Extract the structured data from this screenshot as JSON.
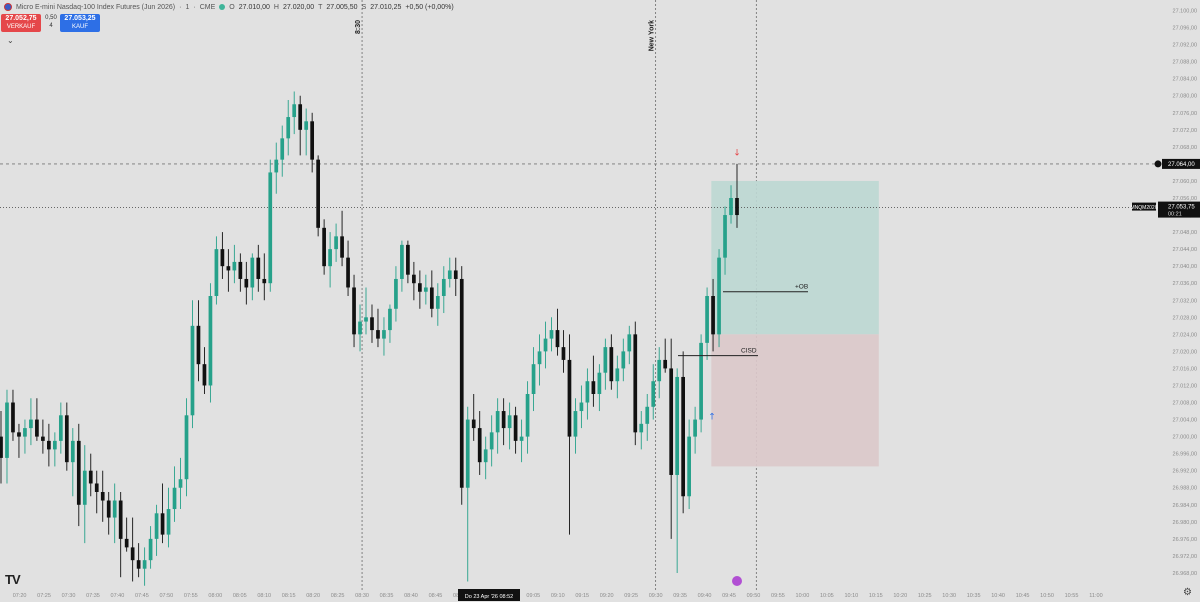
{
  "header": {
    "symbol_title": "Micro E-mini Nasdaq-100 Index Futures (Jun 2026)",
    "interval": "1",
    "exchange": "CME",
    "ohlc": [
      {
        "label": "O",
        "value": "27.010,00"
      },
      {
        "label": "H",
        "value": "27.020,00"
      },
      {
        "label": "T",
        "value": "27.005,50"
      },
      {
        "label": "S",
        "value": "27.010,25"
      }
    ],
    "change": "+0,50 (+0,00%)"
  },
  "trade": {
    "sell_price": "27.052,75",
    "sell_label": "VERKAUF",
    "spread_top": "0,50",
    "spread_bottom": "4",
    "buy_price": "27.053,25",
    "buy_label": "KAUF"
  },
  "colors": {
    "bull": "#26a18a",
    "bear": "#111111",
    "background": "#e1e1e1",
    "target_zone": "#bcd8d3",
    "stop_zone": "#dcc9ca",
    "sell_button": "#e5474a",
    "buy_button": "#2d6fe6"
  },
  "chart_data": {
    "type": "candlestick",
    "symbol": "MNQM2026",
    "ylim": [
      26964,
      27102
    ],
    "y_ticks": [
      "27.100,00",
      "27.096,00",
      "27.092,00",
      "27.088,00",
      "27.084,00",
      "27.080,00",
      "27.076,00",
      "27.072,00",
      "27.068,00",
      "27.064,00",
      "27.060,00",
      "27.056,00",
      "27.052,00",
      "27.048,00",
      "27.044,00",
      "27.040,00",
      "27.036,00",
      "27.032,00",
      "27.028,00",
      "27.024,00",
      "27.020,00",
      "27.016,00",
      "27.012,00",
      "27.008,00",
      "27.004,00",
      "27.000,00",
      "26.996,00",
      "26.992,00",
      "26.988,00",
      "26.984,00",
      "26.980,00",
      "26.976,00",
      "26.972,00",
      "26.968,00"
    ],
    "x_ticks": [
      "07:20",
      "07:25",
      "07:30",
      "07:35",
      "07:40",
      "07:45",
      "07:50",
      "07:55",
      "08:00",
      "08:05",
      "08:10",
      "08:15",
      "08:20",
      "08:25",
      "08:30",
      "08:35",
      "08:40",
      "08:45",
      "08:50",
      "08:55",
      "09:00",
      "09:05",
      "09:10",
      "09:15",
      "09:20",
      "09:25",
      "09:30",
      "09:35",
      "09:40",
      "09:45",
      "09:50",
      "09:55",
      "10:00",
      "10:05",
      "10:10",
      "10:15",
      "10:20",
      "10:25",
      "10:30",
      "10:35",
      "10:40",
      "10:45",
      "10:50",
      "10:55",
      "11:00"
    ],
    "x_start_minutes": 436,
    "x_end_minutes": 669,
    "cursor_label": "Do 23 Apr '26   08:52",
    "session_labels": [
      {
        "text": "8:30",
        "time": "08:30"
      },
      {
        "text": "New York",
        "time": "09:30"
      }
    ],
    "current_price": {
      "value": "27.053,75",
      "countdown": "00:21",
      "symbol": "MNQM2026"
    },
    "alert_level": {
      "value": "27.064,00"
    },
    "annotations": [
      {
        "text": "+OB",
        "price": 27034
      },
      {
        "text": "CISD",
        "price": 27019
      }
    ],
    "position": {
      "entry": 27024,
      "target": 27060,
      "stop": 26993,
      "start": "09:42",
      "end": "10:15"
    },
    "candles": [
      [
        27000,
        27006,
        26989,
        26995
      ],
      [
        26995,
        27011,
        26989,
        27008
      ],
      [
        27008,
        27011,
        26999,
        27001
      ],
      [
        27001,
        27003,
        26995,
        27000
      ],
      [
        27000,
        27004,
        26996,
        27002
      ],
      [
        27002,
        27009,
        26998,
        27004
      ],
      [
        27004,
        27009,
        26999,
        27000
      ],
      [
        27000,
        27004,
        26996,
        26999
      ],
      [
        26999,
        27003,
        26993,
        26997
      ],
      [
        26997,
        27001,
        26993,
        26999
      ],
      [
        26999,
        27008,
        26996,
        27005
      ],
      [
        27005,
        27008,
        26992,
        26994
      ],
      [
        26994,
        27002,
        26986,
        26999
      ],
      [
        26999,
        27003,
        26979,
        26984
      ],
      [
        26984,
        26998,
        26975,
        26992
      ],
      [
        26992,
        26996,
        26986,
        26989
      ],
      [
        26989,
        26992,
        26982,
        26987
      ],
      [
        26987,
        26992,
        26980,
        26985
      ],
      [
        26985,
        26987,
        26977,
        26981
      ],
      [
        26981,
        26989,
        26975,
        26985
      ],
      [
        26985,
        26987,
        26967,
        26976
      ],
      [
        26976,
        26981,
        26973,
        26974
      ],
      [
        26974,
        26981,
        26966,
        26971
      ],
      [
        26971,
        26975,
        26967,
        26969
      ],
      [
        26969,
        26974,
        26965,
        26971
      ],
      [
        26971,
        26979,
        26969,
        26976
      ],
      [
        26976,
        26984,
        26972,
        26982
      ],
      [
        26982,
        26989,
        26975,
        26977
      ],
      [
        26977,
        26988,
        26974,
        26983
      ],
      [
        26983,
        26993,
        26980,
        26988
      ],
      [
        26988,
        26995,
        26983,
        26990
      ],
      [
        26990,
        27009,
        26986,
        27005
      ],
      [
        27005,
        27032,
        27002,
        27026
      ],
      [
        27026,
        27032,
        27013,
        27017
      ],
      [
        27017,
        27021,
        27010,
        27012
      ],
      [
        27012,
        27036,
        27008,
        27033
      ],
      [
        27033,
        27047,
        27031,
        27044
      ],
      [
        27044,
        27048,
        27037,
        27040
      ],
      [
        27040,
        27044,
        27034,
        27039
      ],
      [
        27039,
        27045,
        27036,
        27041
      ],
      [
        27041,
        27043,
        27034,
        27037
      ],
      [
        27037,
        27041,
        27031,
        27035
      ],
      [
        27035,
        27043,
        27032,
        27042
      ],
      [
        27042,
        27045,
        27034,
        27037
      ],
      [
        27037,
        27043,
        27032,
        27036
      ],
      [
        27036,
        27065,
        27034,
        27062
      ],
      [
        27062,
        27069,
        27057,
        27065
      ],
      [
        27065,
        27073,
        27061,
        27070
      ],
      [
        27070,
        27079,
        27066,
        27075
      ],
      [
        27075,
        27081,
        27071,
        27078
      ],
      [
        27078,
        27080,
        27066,
        27072
      ],
      [
        27072,
        27077,
        27066,
        27074
      ],
      [
        27074,
        27076,
        27062,
        27065
      ],
      [
        27065,
        27066,
        27047,
        27049
      ],
      [
        27049,
        27051,
        27038,
        27040
      ],
      [
        27040,
        27048,
        27035,
        27044
      ],
      [
        27044,
        27050,
        27041,
        27047
      ],
      [
        27047,
        27053,
        27040,
        27042
      ],
      [
        27042,
        27046,
        27033,
        27035
      ],
      [
        27035,
        27038,
        27021,
        27024
      ],
      [
        27024,
        27031,
        27020,
        27027
      ],
      [
        27027,
        27035,
        27024,
        27028
      ],
      [
        27028,
        27031,
        27022,
        27025
      ],
      [
        27025,
        27030,
        27021,
        27023
      ],
      [
        27023,
        27028,
        27019,
        27025
      ],
      [
        27025,
        27031,
        27022,
        27030
      ],
      [
        27030,
        27040,
        27027,
        27037
      ],
      [
        27037,
        27046,
        27034,
        27045
      ],
      [
        27045,
        27046,
        27036,
        27038
      ],
      [
        27038,
        27041,
        27032,
        27036
      ],
      [
        27036,
        27039,
        27030,
        27034
      ],
      [
        27034,
        27038,
        27031,
        27035
      ],
      [
        27035,
        27039,
        27028,
        27030
      ],
      [
        27030,
        27036,
        27026,
        27033
      ],
      [
        27033,
        27040,
        27029,
        27037
      ],
      [
        27037,
        27042,
        27035,
        27039
      ],
      [
        27039,
        27042,
        27033,
        27037
      ],
      [
        27037,
        27040,
        26984,
        26988
      ],
      [
        26988,
        27007,
        26966,
        27004
      ],
      [
        27004,
        27010,
        26999,
        27002
      ],
      [
        27002,
        27006,
        26991,
        26994
      ],
      [
        26994,
        27000,
        26990,
        26997
      ],
      [
        26997,
        27005,
        26993,
        27001
      ],
      [
        27001,
        27009,
        26996,
        27006
      ],
      [
        27006,
        27009,
        26998,
        27002
      ],
      [
        27002,
        27008,
        26997,
        27005
      ],
      [
        27005,
        27007,
        26996,
        26999
      ],
      [
        26999,
        27004,
        26994,
        27000
      ],
      [
        27000,
        27013,
        26996,
        27010
      ],
      [
        27010,
        27021,
        27006,
        27017
      ],
      [
        27017,
        27024,
        27012,
        27020
      ],
      [
        27020,
        27027,
        27016,
        27023
      ],
      [
        27023,
        27028,
        27020,
        27025
      ],
      [
        27025,
        27030,
        27019,
        27021
      ],
      [
        27021,
        27025,
        27015,
        27018
      ],
      [
        27018,
        27024,
        26977,
        27000
      ],
      [
        27000,
        27009,
        26996,
        27006
      ],
      [
        27006,
        27012,
        27002,
        27008
      ],
      [
        27008,
        27016,
        27004,
        27013
      ],
      [
        27013,
        27019,
        27007,
        27010
      ],
      [
        27010,
        27017,
        27006,
        27015
      ],
      [
        27015,
        27023,
        27011,
        27021
      ],
      [
        27021,
        27024,
        27011,
        27013
      ],
      [
        27013,
        27019,
        27009,
        27016
      ],
      [
        27016,
        27023,
        27013,
        27020
      ],
      [
        27020,
        27026,
        27017,
        27024
      ],
      [
        27024,
        27027,
        26998,
        27001
      ],
      [
        27001,
        27006,
        26997,
        27003
      ],
      [
        27003,
        27010,
        26999,
        27007
      ],
      [
        27007,
        27017,
        27004,
        27013
      ],
      [
        27013,
        27021,
        27009,
        27018
      ],
      [
        27018,
        27023,
        27015,
        27016
      ],
      [
        27016,
        27023,
        26976,
        26991
      ],
      [
        26991,
        27016,
        26968,
        27014
      ],
      [
        27014,
        27020,
        26982,
        26986
      ],
      [
        26986,
        27004,
        26983,
        27000
      ],
      [
        27000,
        27007,
        26996,
        27004
      ],
      [
        27004,
        27024,
        27001,
        27022
      ],
      [
        27022,
        27035,
        27018,
        27033
      ],
      [
        27033,
        27037,
        27020,
        27024
      ],
      [
        27024,
        27044,
        27021,
        27042
      ],
      [
        27042,
        27054,
        27038,
        27052
      ],
      [
        27052,
        27059,
        27050,
        27056
      ],
      [
        27056,
        27064,
        27049,
        27052
      ]
    ]
  }
}
